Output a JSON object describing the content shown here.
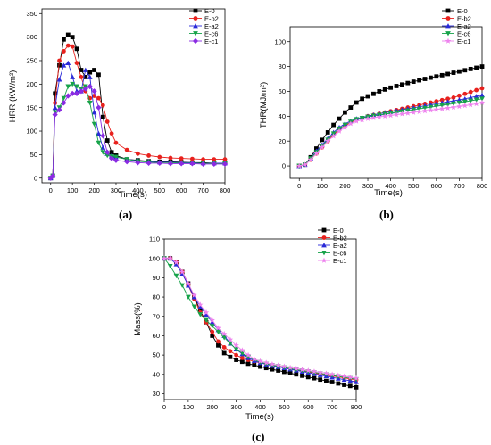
{
  "chart_data": [
    {
      "type": "line",
      "caption": "(a)",
      "xlabel": "Time(s)",
      "ylabel": "HRR (KW/m²)",
      "xlim": [
        -40,
        800
      ],
      "ylim": [
        -10,
        360
      ],
      "xticks": [
        0,
        100,
        200,
        300,
        400,
        500,
        600,
        700,
        800
      ],
      "yticks": [
        0,
        50,
        100,
        150,
        200,
        250,
        300,
        350
      ],
      "legend_position": "top-right",
      "series": [
        {
          "name": "E-0",
          "color": "#000000",
          "marker": "square",
          "x": [
            0,
            10,
            20,
            40,
            60,
            80,
            100,
            120,
            140,
            160,
            180,
            200,
            220,
            240,
            260,
            280,
            300,
            350,
            400,
            450,
            500,
            550,
            600,
            650,
            700,
            750,
            800
          ],
          "y": [
            0,
            5,
            180,
            240,
            295,
            305,
            300,
            275,
            230,
            215,
            225,
            230,
            220,
            130,
            80,
            55,
            48,
            40,
            38,
            36,
            35,
            35,
            34,
            33,
            33,
            32,
            32
          ]
        },
        {
          "name": "E-b2",
          "color": "#e8211d",
          "marker": "circle",
          "x": [
            0,
            10,
            20,
            40,
            60,
            80,
            100,
            120,
            140,
            160,
            180,
            200,
            220,
            240,
            260,
            280,
            300,
            350,
            400,
            450,
            500,
            550,
            600,
            650,
            700,
            750,
            800
          ],
          "y": [
            0,
            5,
            160,
            250,
            270,
            282,
            280,
            245,
            215,
            185,
            170,
            175,
            170,
            155,
            120,
            95,
            75,
            60,
            52,
            48,
            45,
            43,
            42,
            41,
            40,
            40,
            40
          ]
        },
        {
          "name": "E-a2",
          "color": "#2a2ad8",
          "marker": "triangle",
          "x": [
            0,
            10,
            20,
            40,
            60,
            80,
            100,
            120,
            140,
            160,
            180,
            200,
            220,
            240,
            260,
            280,
            300,
            350,
            400,
            450,
            500,
            550,
            600,
            650,
            700,
            750,
            800
          ],
          "y": [
            0,
            5,
            150,
            210,
            240,
            245,
            215,
            185,
            185,
            230,
            215,
            140,
            95,
            65,
            52,
            48,
            45,
            40,
            37,
            35,
            34,
            34,
            33,
            33,
            32,
            32,
            32
          ]
        },
        {
          "name": "E-c6",
          "color": "#17a34a",
          "marker": "triangle-down",
          "x": [
            0,
            10,
            20,
            40,
            60,
            80,
            100,
            120,
            140,
            160,
            180,
            200,
            220,
            240,
            260,
            280,
            300,
            350,
            400,
            450,
            500,
            550,
            600,
            650,
            700,
            750,
            800
          ],
          "y": [
            0,
            5,
            140,
            150,
            170,
            195,
            200,
            195,
            190,
            195,
            160,
            115,
            75,
            55,
            48,
            46,
            45,
            40,
            36,
            34,
            33,
            33,
            32,
            32,
            32,
            31,
            31
          ]
        },
        {
          "name": "E-c1",
          "color": "#8a2be2",
          "marker": "diamond",
          "x": [
            0,
            10,
            20,
            40,
            60,
            80,
            100,
            120,
            140,
            160,
            180,
            200,
            220,
            240,
            260,
            280,
            300,
            350,
            400,
            450,
            500,
            550,
            600,
            650,
            700,
            750,
            800
          ],
          "y": [
            0,
            5,
            135,
            145,
            160,
            175,
            180,
            180,
            185,
            190,
            195,
            185,
            150,
            90,
            55,
            42,
            38,
            35,
            33,
            32,
            32,
            31,
            31,
            31,
            30,
            30,
            30
          ]
        }
      ]
    },
    {
      "type": "line",
      "caption": "(b)",
      "xlabel": "Time(s)",
      "ylabel": "THR(MJ/m²)",
      "xlim": [
        -40,
        800
      ],
      "ylim": [
        -10,
        112
      ],
      "xticks": [
        0,
        100,
        200,
        300,
        400,
        500,
        600,
        700,
        800
      ],
      "yticks": [
        0,
        20,
        40,
        60,
        80,
        100
      ],
      "legend_position": "top-right",
      "series": [
        {
          "name": "E-0",
          "color": "#000000",
          "marker": "square",
          "x": [
            0,
            25,
            50,
            75,
            100,
            125,
            150,
            175,
            200,
            225,
            250,
            275,
            300,
            325,
            350,
            375,
            400,
            425,
            450,
            475,
            500,
            525,
            550,
            575,
            600,
            625,
            650,
            675,
            700,
            725,
            750,
            775,
            800
          ],
          "y": [
            0,
            1,
            7,
            14,
            21,
            27,
            33,
            38,
            43,
            47,
            51,
            54,
            56,
            58,
            60,
            61.5,
            63,
            64.3,
            65.5,
            66.7,
            67.8,
            68.9,
            70,
            71,
            72,
            73,
            74,
            75,
            76,
            77,
            78,
            79,
            80
          ]
        },
        {
          "name": "E-b2",
          "color": "#e8211d",
          "marker": "circle",
          "x": [
            0,
            25,
            50,
            75,
            100,
            125,
            150,
            175,
            200,
            225,
            250,
            275,
            300,
            325,
            350,
            375,
            400,
            425,
            450,
            475,
            500,
            525,
            550,
            575,
            600,
            625,
            650,
            675,
            700,
            725,
            750,
            775,
            800
          ],
          "y": [
            0,
            1,
            5,
            10,
            15,
            20,
            25,
            29,
            32,
            35,
            37,
            38.5,
            40,
            41,
            42,
            43,
            44,
            45,
            46,
            47,
            48,
            49,
            50,
            51,
            52,
            53,
            54,
            55,
            56.5,
            58,
            59.5,
            61,
            62.5
          ]
        },
        {
          "name": "E-a2",
          "color": "#2a2ad8",
          "marker": "triangle",
          "x": [
            0,
            25,
            50,
            75,
            100,
            125,
            150,
            175,
            200,
            225,
            250,
            275,
            300,
            325,
            350,
            375,
            400,
            425,
            450,
            475,
            500,
            525,
            550,
            575,
            600,
            625,
            650,
            675,
            700,
            725,
            750,
            775,
            800
          ],
          "y": [
            0,
            1,
            6,
            12,
            17,
            22,
            27,
            31,
            34,
            36,
            38,
            39,
            40,
            41,
            42,
            42.8,
            43.6,
            44.4,
            45.2,
            46,
            46.8,
            47.6,
            48.4,
            49.2,
            50,
            50.8,
            51.6,
            52.4,
            53.2,
            54,
            55,
            56,
            57
          ]
        },
        {
          "name": "E-c6",
          "color": "#17a34a",
          "marker": "triangle-down",
          "x": [
            0,
            25,
            50,
            75,
            100,
            125,
            150,
            175,
            200,
            225,
            250,
            275,
            300,
            325,
            350,
            375,
            400,
            425,
            450,
            475,
            500,
            525,
            550,
            575,
            600,
            625,
            650,
            675,
            700,
            725,
            750,
            775,
            800
          ],
          "y": [
            0,
            1,
            6,
            11,
            16,
            21,
            26,
            30,
            33,
            35.5,
            37.5,
            38.5,
            39.5,
            40.3,
            41,
            41.7,
            42.4,
            43.1,
            43.8,
            44.5,
            45.2,
            45.9,
            46.6,
            47.3,
            48,
            48.7,
            49.4,
            50.1,
            50.8,
            51.6,
            52.4,
            53.2,
            54
          ]
        },
        {
          "name": "E-c1",
          "color": "#ee82ee",
          "marker": "star",
          "x": [
            0,
            25,
            50,
            75,
            100,
            125,
            150,
            175,
            200,
            225,
            250,
            275,
            300,
            325,
            350,
            375,
            400,
            425,
            450,
            475,
            500,
            525,
            550,
            575,
            600,
            625,
            650,
            675,
            700,
            725,
            750,
            775,
            800
          ],
          "y": [
            0,
            1,
            5,
            10,
            15,
            20,
            24,
            28,
            31,
            34,
            36,
            37,
            38,
            38.7,
            39.4,
            40,
            40.6,
            41.2,
            41.8,
            42.4,
            43,
            43.6,
            44.2,
            44.8,
            45.4,
            46,
            46.6,
            47.2,
            47.8,
            48.5,
            49.2,
            50,
            51
          ]
        }
      ]
    },
    {
      "type": "line",
      "caption": "(c)",
      "xlabel": "Time(s)",
      "ylabel": "Mass(%)",
      "xlim": [
        0,
        800
      ],
      "ylim": [
        27,
        110
      ],
      "xticks": [
        0,
        100,
        200,
        300,
        400,
        500,
        600,
        700,
        800
      ],
      "yticks": [
        30,
        40,
        50,
        60,
        70,
        80,
        90,
        100,
        110
      ],
      "legend_position": "top-right",
      "series": [
        {
          "name": "E-0",
          "color": "#000000",
          "marker": "square",
          "x": [
            0,
            25,
            50,
            75,
            100,
            125,
            150,
            175,
            200,
            225,
            250,
            275,
            300,
            325,
            350,
            375,
            400,
            425,
            450,
            475,
            500,
            525,
            550,
            575,
            600,
            625,
            650,
            675,
            700,
            725,
            750,
            775,
            800
          ],
          "y": [
            100,
            100,
            98,
            93,
            87,
            80,
            73,
            67,
            60,
            55,
            51,
            49,
            47.5,
            46.5,
            45.5,
            44.8,
            44,
            43.3,
            42.6,
            42,
            41.3,
            40.6,
            40,
            39.3,
            38.6,
            38,
            37.3,
            36.6,
            36,
            35.3,
            34.6,
            34,
            33.3
          ]
        },
        {
          "name": "E-b2",
          "color": "#e8211d",
          "marker": "circle",
          "x": [
            0,
            25,
            50,
            75,
            100,
            125,
            150,
            175,
            200,
            225,
            250,
            275,
            300,
            325,
            350,
            375,
            400,
            425,
            450,
            475,
            500,
            525,
            550,
            575,
            600,
            625,
            650,
            675,
            700,
            725,
            750,
            775,
            800
          ],
          "y": [
            100,
            100,
            98,
            93,
            86,
            79,
            72,
            67,
            62,
            57,
            54,
            52,
            50,
            48.5,
            47.5,
            46.7,
            46,
            45.4,
            44.8,
            44.2,
            43.6,
            43,
            42.4,
            41.8,
            41.2,
            40.7,
            40.2,
            39.7,
            39.2,
            38.7,
            38.2,
            37.7,
            37.2
          ]
        },
        {
          "name": "E-a2",
          "color": "#2a2ad8",
          "marker": "triangle",
          "x": [
            0,
            25,
            50,
            75,
            100,
            125,
            150,
            175,
            200,
            225,
            250,
            275,
            300,
            325,
            350,
            375,
            400,
            425,
            450,
            475,
            500,
            525,
            550,
            575,
            600,
            625,
            650,
            675,
            700,
            725,
            750,
            775,
            800
          ],
          "y": [
            100,
            100,
            97,
            92,
            86,
            80,
            75,
            71,
            67,
            63,
            60,
            56,
            53,
            50.5,
            48.5,
            47,
            46,
            45.2,
            44.5,
            43.9,
            43.3,
            42.7,
            42.1,
            41.5,
            40.9,
            40.3,
            39.7,
            39.1,
            38.5,
            37.9,
            37.3,
            36.7,
            36.1
          ]
        },
        {
          "name": "E-c6",
          "color": "#17a34a",
          "marker": "triangle-down",
          "x": [
            0,
            25,
            50,
            75,
            100,
            125,
            150,
            175,
            200,
            225,
            250,
            275,
            300,
            325,
            350,
            375,
            400,
            425,
            450,
            475,
            500,
            525,
            550,
            575,
            600,
            625,
            650,
            675,
            700,
            725,
            750,
            775,
            800
          ],
          "y": [
            100,
            96,
            91,
            86,
            80,
            75,
            71,
            68,
            65,
            62,
            59,
            56,
            53,
            51,
            49,
            47.5,
            46.3,
            45.5,
            44.8,
            44.2,
            43.6,
            43,
            42.5,
            42,
            41.5,
            41,
            40.5,
            40,
            39.5,
            39,
            38.5,
            38,
            37.5
          ]
        },
        {
          "name": "E-c1",
          "color": "#ee82ee",
          "marker": "star",
          "x": [
            0,
            25,
            50,
            75,
            100,
            125,
            150,
            175,
            200,
            225,
            250,
            275,
            300,
            325,
            350,
            375,
            400,
            425,
            450,
            475,
            500,
            525,
            550,
            575,
            600,
            625,
            650,
            675,
            700,
            725,
            750,
            775,
            800
          ],
          "y": [
            100,
            100,
            98,
            93,
            87,
            81,
            76,
            72,
            68,
            64,
            61,
            58,
            55,
            52.5,
            50,
            48,
            46.8,
            46,
            45.3,
            44.7,
            44.1,
            43.5,
            43,
            42.5,
            42,
            41.5,
            41,
            40.5,
            40,
            39.5,
            39,
            38.5,
            38
          ]
        }
      ]
    }
  ]
}
